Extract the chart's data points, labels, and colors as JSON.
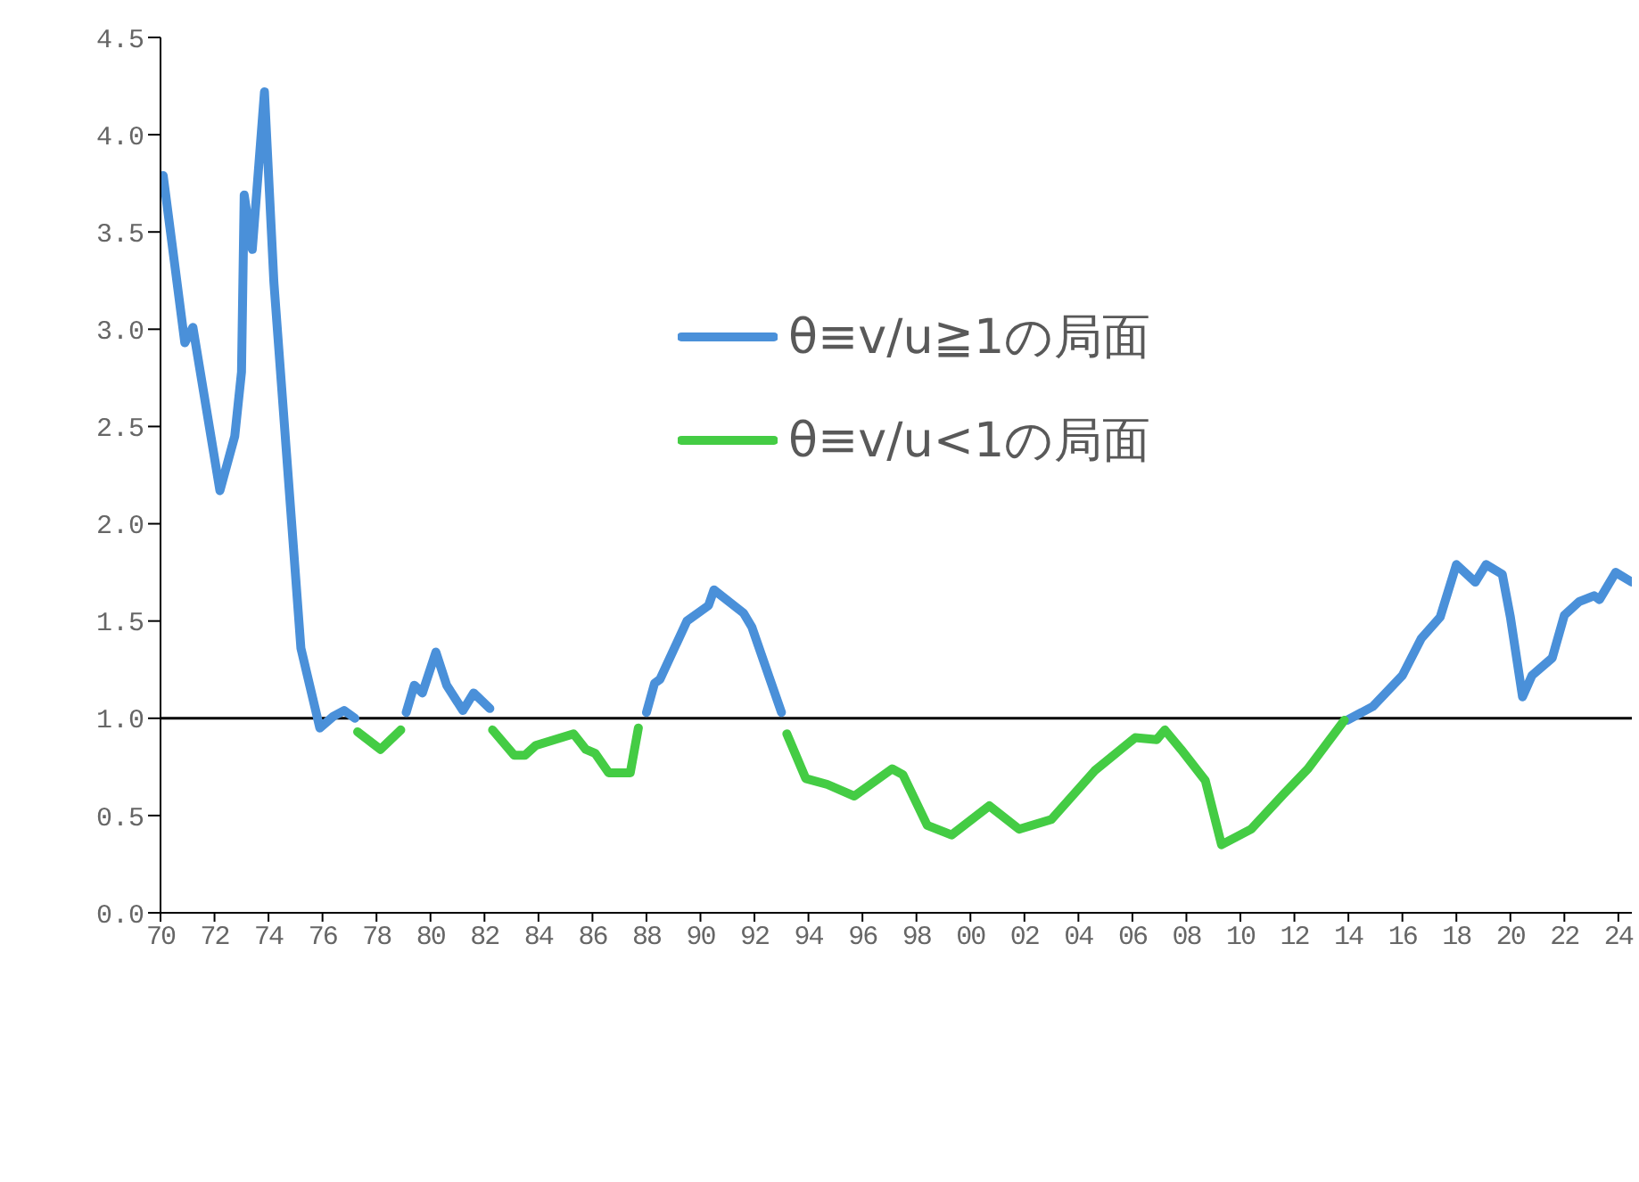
{
  "chart_data": {
    "type": "line",
    "xlim": [
      1970,
      2024.5
    ],
    "xticks": [
      {
        "value": 1970,
        "label": "70"
      },
      {
        "value": 1972,
        "label": "72"
      },
      {
        "value": 1974,
        "label": "74"
      },
      {
        "value": 1976,
        "label": "76"
      },
      {
        "value": 1978,
        "label": "78"
      },
      {
        "value": 1980,
        "label": "80"
      },
      {
        "value": 1982,
        "label": "82"
      },
      {
        "value": 1984,
        "label": "84"
      },
      {
        "value": 1986,
        "label": "86"
      },
      {
        "value": 1988,
        "label": "88"
      },
      {
        "value": 1990,
        "label": "90"
      },
      {
        "value": 1992,
        "label": "92"
      },
      {
        "value": 1994,
        "label": "94"
      },
      {
        "value": 1996,
        "label": "96"
      },
      {
        "value": 1998,
        "label": "98"
      },
      {
        "value": 2000,
        "label": "00"
      },
      {
        "value": 2002,
        "label": "02"
      },
      {
        "value": 2004,
        "label": "04"
      },
      {
        "value": 2006,
        "label": "06"
      },
      {
        "value": 2008,
        "label": "08"
      },
      {
        "value": 2010,
        "label": "10"
      },
      {
        "value": 2012,
        "label": "12"
      },
      {
        "value": 2014,
        "label": "14"
      },
      {
        "value": 2016,
        "label": "16"
      },
      {
        "value": 2018,
        "label": "18"
      },
      {
        "value": 2020,
        "label": "20"
      },
      {
        "value": 2022,
        "label": "22"
      },
      {
        "value": 2024,
        "label": "24"
      }
    ],
    "ylim": [
      0,
      4.5
    ],
    "yticks": [
      {
        "value": 0,
        "label": "0.0"
      },
      0.5,
      {
        "value": 1,
        "label": "1.0"
      },
      1.5,
      {
        "value": 2,
        "label": "2.0"
      },
      2.5,
      {
        "value": 3,
        "label": "3.0"
      },
      3.5,
      {
        "value": 4,
        "label": "4.0"
      },
      4.5
    ],
    "grid": false,
    "legend": "top right",
    "marker": "none",
    "line_style": "solid",
    "ref_lines": [
      {
        "axis": "y",
        "value": 1,
        "color": "#000000"
      }
    ],
    "series": [
      {
        "name": "θ≡v/u≧1の局面",
        "color": "#4a90d9",
        "x": [
          1970.1,
          1970.9,
          1971.2,
          1972.2,
          1972.75,
          1973.0,
          1973.1,
          1973.4,
          1973.85,
          1974.2,
          1975.2,
          1975.9,
          1976.4,
          1976.8,
          1977.2,
          1978.2,
          1979.1,
          1979.4,
          1979.7,
          1980.2,
          1980.6,
          1981.2,
          1981.6,
          1982.2,
          1985,
          1988.0,
          1988.3,
          1988.5,
          1989.5,
          1990.3,
          1990.5,
          1991.6,
          1991.9,
          1993.0,
          2003,
          2013.95,
          2014.9,
          2016.0,
          2016.7,
          2017.4,
          2018.0,
          2018.7,
          2019.1,
          2019.7,
          2020.0,
          2020.45,
          2020.8,
          2021.55,
          2022.0,
          2022.55,
          2023.1,
          2023.3,
          2023.9,
          2024.5
        ],
        "values": [
          3.79,
          2.93,
          3.01,
          2.17,
          2.45,
          2.78,
          3.69,
          3.41,
          4.22,
          3.24,
          1.36,
          0.95,
          1.01,
          1.04,
          1.0,
          null,
          1.03,
          1.17,
          1.13,
          1.34,
          1.17,
          1.04,
          1.13,
          1.05,
          null,
          1.03,
          1.18,
          1.2,
          1.5,
          1.58,
          1.66,
          1.54,
          1.47,
          1.03,
          null,
          0.99,
          1.06,
          1.22,
          1.41,
          1.52,
          1.79,
          1.7,
          1.79,
          1.74,
          1.52,
          1.11,
          1.22,
          1.31,
          1.53,
          1.6,
          1.63,
          1.61,
          1.75,
          1.7
        ]
      },
      {
        "name": "θ≡v/u<1の局面",
        "color": "#44cc44",
        "x": [
          1977.3,
          1978.15,
          1978.9,
          1980.5,
          1982.3,
          1983.1,
          1983.5,
          1983.9,
          1985.3,
          1985.75,
          1986.1,
          1986.6,
          1987.4,
          1987.7,
          1990,
          1993.2,
          1993.9,
          1994.7,
          1995.7,
          1997.1,
          1997.5,
          1998.4,
          1999.3,
          2000.7,
          2001.8,
          2003.0,
          2004.6,
          2006.1,
          2006.9,
          2007.2,
          2007.8,
          2008.7,
          2009.3,
          2010.4,
          2011.6,
          2012.5,
          2013.85
        ],
        "values": [
          0.93,
          0.84,
          0.94,
          null,
          0.94,
          0.81,
          0.81,
          0.86,
          0.92,
          0.84,
          0.82,
          0.72,
          0.72,
          0.95,
          null,
          0.92,
          0.69,
          0.66,
          0.6,
          0.74,
          0.71,
          0.45,
          0.4,
          0.55,
          0.43,
          0.48,
          0.73,
          0.9,
          0.89,
          0.94,
          0.84,
          0.68,
          0.35,
          0.43,
          0.61,
          0.74,
          0.99
        ]
      }
    ]
  }
}
